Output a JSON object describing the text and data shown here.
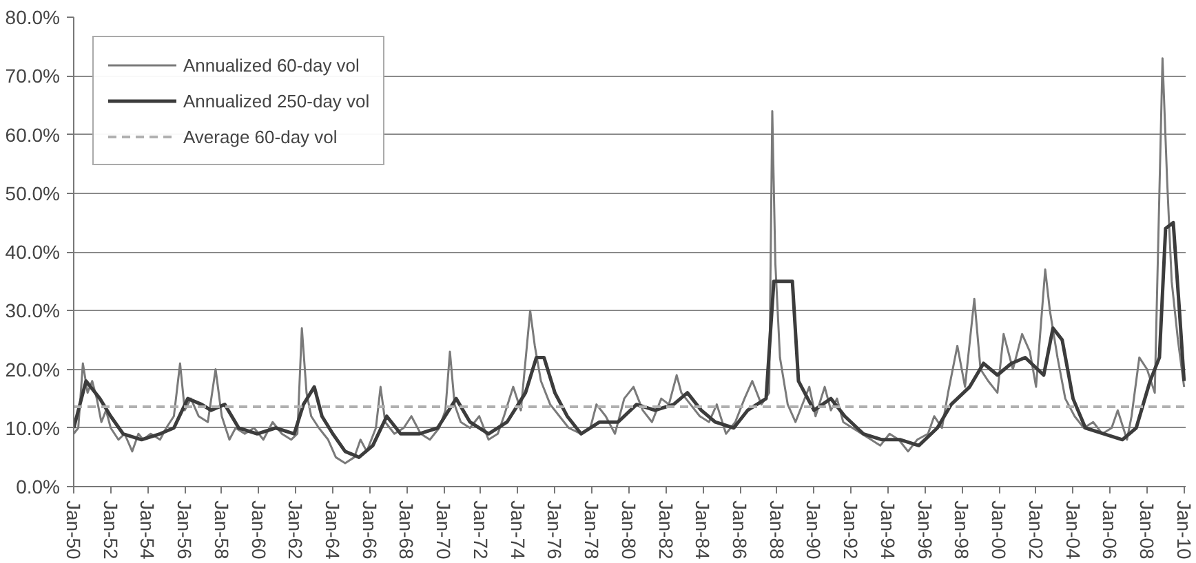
{
  "chart_data": {
    "type": "line",
    "x": [
      "1950-01",
      "1950-04",
      "1950-07",
      "1950-10",
      "1951-01",
      "1951-04",
      "1951-07",
      "1951-10",
      "1952-01",
      "1952-06",
      "1952-10",
      "1953-03",
      "1953-07",
      "1953-10",
      "1954-03",
      "1954-09",
      "1955-01",
      "1955-06",
      "1955-10",
      "1956-01",
      "1956-05",
      "1956-10",
      "1957-04",
      "1957-09",
      "1958-01",
      "1958-06",
      "1958-10",
      "1959-04",
      "1959-10",
      "1960-04",
      "1960-10",
      "1961-04",
      "1961-10",
      "1962-02",
      "1962-05",
      "1962-08",
      "1962-11",
      "1963-04",
      "1963-10",
      "1964-03",
      "1964-09",
      "1965-03",
      "1965-07",
      "1965-11",
      "1966-05",
      "1966-08",
      "1966-11",
      "1967-05",
      "1967-11",
      "1968-04",
      "1968-10",
      "1969-04",
      "1969-10",
      "1970-02",
      "1970-05",
      "1970-08",
      "1970-12",
      "1971-06",
      "1971-12",
      "1972-06",
      "1972-12",
      "1973-04",
      "1973-10",
      "1974-03",
      "1974-09",
      "1974-12",
      "1975-04",
      "1975-10",
      "1976-04",
      "1976-10",
      "1977-06",
      "1977-12",
      "1978-04",
      "1978-10",
      "1979-04",
      "1979-10",
      "1980-04",
      "1980-10",
      "1981-04",
      "1981-10",
      "1982-03",
      "1982-08",
      "1982-11",
      "1983-05",
      "1983-11",
      "1984-05",
      "1984-10",
      "1985-04",
      "1985-10",
      "1986-04",
      "1986-09",
      "1987-03",
      "1987-08",
      "1987-10",
      "1987-12",
      "1988-03",
      "1988-08",
      "1989-01",
      "1989-10",
      "1990-02",
      "1990-08",
      "1990-12",
      "1991-04",
      "1991-08",
      "1992-02",
      "1992-08",
      "1993-02",
      "1993-08",
      "1994-02",
      "1994-08",
      "1995-02",
      "1995-08",
      "1996-03",
      "1996-07",
      "1996-12",
      "1997-04",
      "1997-10",
      "1998-03",
      "1998-09",
      "1999-01",
      "1999-06",
      "1999-12",
      "2000-04",
      "2000-10",
      "2001-04",
      "2001-09",
      "2002-01",
      "2002-07",
      "2002-10",
      "2003-03",
      "2003-08",
      "2004-02",
      "2004-08",
      "2005-02",
      "2005-08",
      "2006-02",
      "2006-06",
      "2006-12",
      "2007-03",
      "2007-08",
      "2008-01",
      "2008-06",
      "2008-11",
      "2009-02",
      "2009-05",
      "2009-09",
      "2010-01"
    ],
    "series": [
      {
        "name": "Annualized 60-day vol",
        "color": "#7a7a7a",
        "values": [
          9,
          10,
          21,
          16,
          18,
          15,
          11,
          13,
          10,
          8,
          9,
          6,
          9,
          8,
          9,
          8,
          10,
          12,
          21,
          13,
          15,
          12,
          11,
          20,
          12,
          8,
          10,
          9,
          10,
          8,
          11,
          9,
          8,
          9,
          27,
          16,
          12,
          10,
          8,
          5,
          4,
          5,
          8,
          6,
          10,
          17,
          11,
          9,
          10,
          12,
          9,
          8,
          10,
          13,
          23,
          14,
          11,
          10,
          12,
          8,
          9,
          12,
          17,
          13,
          30,
          24,
          18,
          14,
          12,
          10,
          9,
          10,
          14,
          12,
          9,
          15,
          17,
          13,
          11,
          15,
          14,
          19,
          16,
          14,
          12,
          11,
          14,
          9,
          11,
          15,
          18,
          14,
          16,
          64,
          38,
          22,
          14,
          11,
          17,
          12,
          17,
          13,
          15,
          11,
          10,
          9,
          8,
          7,
          9,
          8,
          6,
          8,
          9,
          12,
          10,
          16,
          24,
          17,
          32,
          20,
          18,
          16,
          26,
          20,
          26,
          23,
          17,
          37,
          30,
          22,
          15,
          12,
          10,
          11,
          9,
          10,
          13,
          8,
          12,
          22,
          20,
          16,
          73,
          52,
          35,
          25,
          17
        ]
      },
      {
        "name": "Annualized 250-day vol",
        "color": "#3c3c3c",
        "x": [
          "1950-01",
          "1950-09",
          "1951-06",
          "1952-01",
          "1952-09",
          "1953-09",
          "1954-09",
          "1955-06",
          "1956-03",
          "1956-12",
          "1957-06",
          "1958-03",
          "1958-12",
          "1959-12",
          "1960-12",
          "1961-12",
          "1962-06",
          "1963-01",
          "1963-06",
          "1964-01",
          "1964-09",
          "1965-06",
          "1966-03",
          "1966-12",
          "1967-09",
          "1968-09",
          "1969-09",
          "1970-09",
          "1971-06",
          "1972-06",
          "1973-06",
          "1974-06",
          "1975-01",
          "1975-06",
          "1976-01",
          "1976-09",
          "1977-06",
          "1978-06",
          "1979-06",
          "1980-06",
          "1981-06",
          "1982-06",
          "1983-03",
          "1983-12",
          "1984-09",
          "1985-09",
          "1986-06",
          "1987-06",
          "1987-11",
          "1988-11",
          "1989-03",
          "1990-01",
          "1990-12",
          "1991-09",
          "1992-09",
          "1993-09",
          "1994-09",
          "1995-09",
          "1996-09",
          "1997-06",
          "1998-06",
          "1999-03",
          "1999-12",
          "2000-09",
          "2001-06",
          "2002-06",
          "2002-12",
          "2003-06",
          "2004-01",
          "2004-09",
          "2005-09",
          "2006-09",
          "2007-06",
          "2008-03",
          "2008-09",
          "2009-01",
          "2009-06",
          "2009-10",
          "2010-01"
        ],
        "values": [
          10,
          18,
          15,
          12,
          9,
          8,
          9,
          10,
          15,
          14,
          13,
          14,
          10,
          9,
          10,
          9,
          14,
          17,
          12,
          9,
          6,
          5,
          7,
          12,
          9,
          9,
          10,
          15,
          11,
          9,
          11,
          16,
          22,
          22,
          16,
          12,
          9,
          11,
          11,
          14,
          13,
          14,
          16,
          13,
          11,
          10,
          13,
          15,
          35,
          35,
          18,
          13,
          15,
          12,
          9,
          8,
          8,
          7,
          10,
          14,
          17,
          21,
          19,
          21,
          22,
          19,
          27,
          25,
          15,
          10,
          9,
          8,
          10,
          18,
          22,
          44,
          45,
          30,
          18
        ]
      }
    ],
    "ref_lines": [
      {
        "axis": "y",
        "value": 13.6,
        "label": "Average 60-day vol",
        "color": "#b0b0b0",
        "line_style": "dashed"
      }
    ],
    "xlim": [
      "1950-01",
      "2010-02"
    ],
    "xticks": [
      {
        "value": "1950-01",
        "label": "Jan-50"
      },
      {
        "value": "1952-01",
        "label": "Jan-52"
      },
      {
        "value": "1954-01",
        "label": "Jan-54"
      },
      {
        "value": "1956-01",
        "label": "Jan-56"
      },
      {
        "value": "1958-01",
        "label": "Jan-58"
      },
      {
        "value": "1960-01",
        "label": "Jan-60"
      },
      {
        "value": "1962-01",
        "label": "Jan-62"
      },
      {
        "value": "1964-01",
        "label": "Jan-64"
      },
      {
        "value": "1966-01",
        "label": "Jan-66"
      },
      {
        "value": "1968-01",
        "label": "Jan-68"
      },
      {
        "value": "1970-01",
        "label": "Jan-70"
      },
      {
        "value": "1972-01",
        "label": "Jan-72"
      },
      {
        "value": "1974-01",
        "label": "Jan-74"
      },
      {
        "value": "1976-01",
        "label": "Jan-76"
      },
      {
        "value": "1978-01",
        "label": "Jan-78"
      },
      {
        "value": "1980-01",
        "label": "Jan-80"
      },
      {
        "value": "1982-01",
        "label": "Jan-82"
      },
      {
        "value": "1984-01",
        "label": "Jan-84"
      },
      {
        "value": "1986-01",
        "label": "Jan-86"
      },
      {
        "value": "1988-01",
        "label": "Jan-88"
      },
      {
        "value": "1990-01",
        "label": "Jan-90"
      },
      {
        "value": "1992-01",
        "label": "Jan-92"
      },
      {
        "value": "1994-01",
        "label": "Jan-94"
      },
      {
        "value": "1996-01",
        "label": "Jan-96"
      },
      {
        "value": "1998-01",
        "label": "Jan-98"
      },
      {
        "value": "2000-01",
        "label": "Jan-00"
      },
      {
        "value": "2002-01",
        "label": "Jan-02"
      },
      {
        "value": "2004-01",
        "label": "Jan-04"
      },
      {
        "value": "2006-01",
        "label": "Jan-06"
      },
      {
        "value": "2008-01",
        "label": "Jan-08"
      },
      {
        "value": "2010-01",
        "label": "Jan-10"
      }
    ],
    "ylim": [
      0,
      80
    ],
    "yticks": [
      {
        "value": 0,
        "label": "0.0%"
      },
      {
        "value": 10,
        "label": "10.0%"
      },
      {
        "value": 20,
        "label": "20.0%"
      },
      {
        "value": 30,
        "label": "30.0%"
      },
      {
        "value": 40,
        "label": "40.0%"
      },
      {
        "value": 50,
        "label": "50.0%"
      },
      {
        "value": 60,
        "label": "60.0%"
      },
      {
        "value": 70,
        "label": "70.0%"
      },
      {
        "value": 80,
        "label": "80.0%"
      }
    ],
    "grid": "y",
    "legend": "top left",
    "line_style": "solid",
    "marker": "none"
  }
}
